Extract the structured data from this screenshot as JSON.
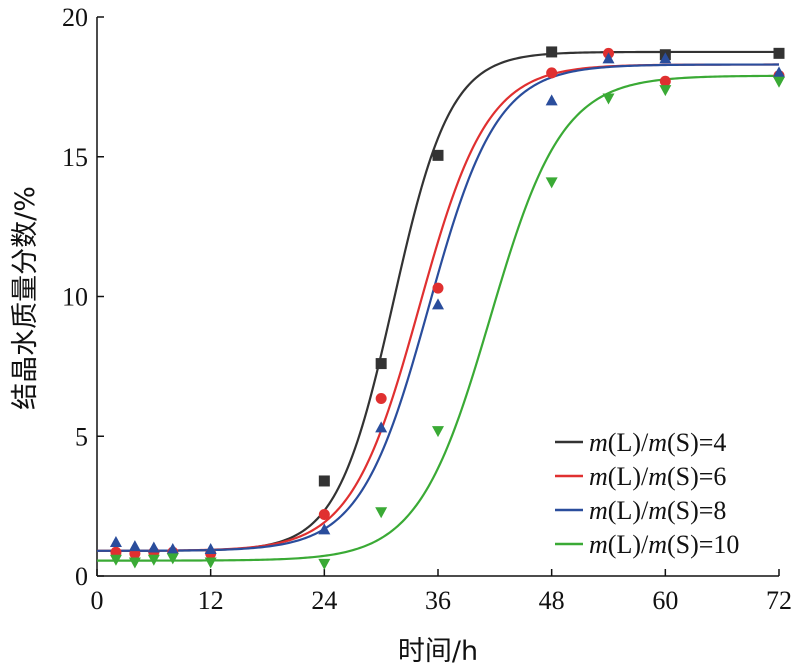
{
  "chart_data": {
    "type": "line",
    "xlabel": "时间/h",
    "ylabel": "结晶水质量分数/%",
    "xlim": [
      0,
      72
    ],
    "ylim": [
      0,
      20
    ],
    "xticks": [
      0,
      12,
      24,
      36,
      48,
      60,
      72
    ],
    "yticks": [
      0,
      5,
      10,
      15,
      20
    ],
    "grid": false,
    "legend_position": "bottom-right",
    "series": [
      {
        "name": "m(L)/m(S)=4",
        "legend": {
          "m1": "m",
          "l": "(L)/",
          "m2": "m",
          "r": "(S)=4"
        },
        "color": "#333333",
        "marker": "square",
        "fit": {
          "base": 0.9,
          "top": 18.75,
          "x0": 31.3,
          "k": 3.0
        },
        "points": [
          [
            24,
            3.4
          ],
          [
            30,
            7.6
          ],
          [
            36,
            15.05
          ],
          [
            48,
            18.75
          ],
          [
            60,
            18.65
          ],
          [
            72,
            18.7
          ]
        ]
      },
      {
        "name": "m(L)/m(S)=6",
        "legend": {
          "m1": "m",
          "l": "(L)/",
          "m2": "m",
          "r": "(S)=6"
        },
        "color": "#e03030",
        "marker": "circle",
        "fit": {
          "base": 0.9,
          "top": 18.3,
          "x0": 34.0,
          "k": 3.6
        },
        "points": [
          [
            2,
            0.85
          ],
          [
            4,
            0.8
          ],
          [
            6,
            0.85
          ],
          [
            8,
            0.85
          ],
          [
            12,
            0.8
          ],
          [
            24,
            2.2
          ],
          [
            30,
            6.35
          ],
          [
            36,
            10.3
          ],
          [
            48,
            18.0
          ],
          [
            54,
            18.7
          ],
          [
            60,
            17.7
          ],
          [
            72,
            17.9
          ]
        ]
      },
      {
        "name": "m(L)/m(S)=8",
        "legend": {
          "m1": "m",
          "l": "(L)/",
          "m2": "m",
          "r": "(S)=8"
        },
        "color": "#2a4d9c",
        "marker": "triangle-up",
        "fit": {
          "base": 0.9,
          "top": 18.3,
          "x0": 35.0,
          "k": 3.6
        },
        "points": [
          [
            2,
            1.2
          ],
          [
            4,
            1.05
          ],
          [
            6,
            1.0
          ],
          [
            8,
            0.95
          ],
          [
            12,
            0.95
          ],
          [
            24,
            1.65
          ],
          [
            30,
            5.3
          ],
          [
            36,
            9.7
          ],
          [
            48,
            17.0
          ],
          [
            54,
            18.5
          ],
          [
            60,
            18.5
          ],
          [
            72,
            18.0
          ]
        ]
      },
      {
        "name": "m(L)/m(S)=10",
        "legend": {
          "m1": "m",
          "l": "(L)/",
          "m2": "m",
          "r": "(S)=10"
        },
        "color": "#3aaa35",
        "marker": "triangle-down",
        "fit": {
          "base": 0.55,
          "top": 17.9,
          "x0": 41.5,
          "k": 3.8
        },
        "points": [
          [
            2,
            0.6
          ],
          [
            4,
            0.5
          ],
          [
            6,
            0.6
          ],
          [
            8,
            0.65
          ],
          [
            12,
            0.5
          ],
          [
            24,
            0.45
          ],
          [
            30,
            2.3
          ],
          [
            36,
            5.2
          ],
          [
            48,
            14.1
          ],
          [
            54,
            17.1
          ],
          [
            60,
            17.4
          ],
          [
            72,
            17.7
          ]
        ]
      }
    ]
  }
}
